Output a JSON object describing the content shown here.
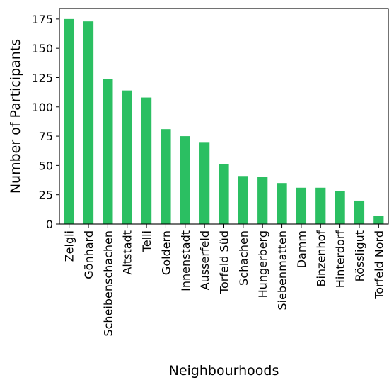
{
  "chart_data": {
    "type": "bar",
    "title": "",
    "xlabel": "Neighbourhoods",
    "ylabel": "Number of Participants",
    "categories": [
      "Zelgli",
      "Gönhard",
      "Scheibenschachen",
      "Altstadt",
      "Telli",
      "Goldern",
      "Innenstadt",
      "Ausserfeld",
      "Torfeld Süd",
      "Schachen",
      "Hungerberg",
      "Siebenmatten",
      "Damm",
      "Binzenhof",
      "Hinterdorf",
      "Rössligut",
      "Torfeld Nord"
    ],
    "values": [
      175,
      173,
      124,
      114,
      108,
      81,
      75,
      70,
      51,
      41,
      40,
      35,
      31,
      31,
      28,
      20,
      7
    ],
    "ylim": [
      0,
      184
    ],
    "yticks": [
      0,
      25,
      50,
      75,
      100,
      125,
      150,
      175
    ],
    "grid": false,
    "legend": "none",
    "bar_color": "#2bbf62"
  }
}
